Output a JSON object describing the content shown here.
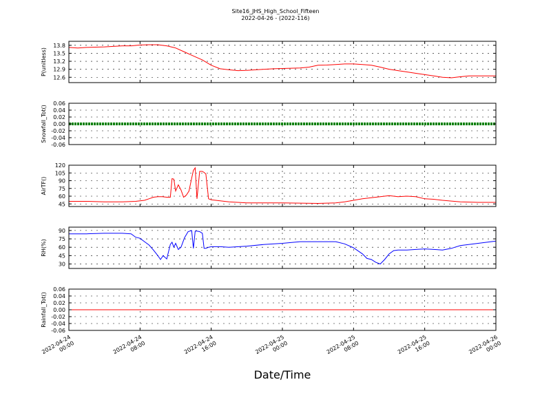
{
  "figure": {
    "title_line1": "Site16_JHS_High_School_Fifteen",
    "title_line2": "2022-04-26 - (2022-116)",
    "xlabel": "Date/Time",
    "x_ticks": [
      {
        "line1": "2022-04-24",
        "line2": "00:00"
      },
      {
        "line1": "2022-04-24",
        "line2": "08:00"
      },
      {
        "line1": "2022-04-24",
        "line2": "16:00"
      },
      {
        "line1": "2022-04-25",
        "line2": "00:00"
      },
      {
        "line1": "2022-04-25",
        "line2": "08:00"
      },
      {
        "line1": "2022-04-25",
        "line2": "16:00"
      },
      {
        "line1": "2022-04-26",
        "line2": "00:00"
      }
    ]
  },
  "chart_data": [
    {
      "type": "line",
      "ylabel": "P(unitless)",
      "ylim": [
        12.4,
        13.95
      ],
      "yticks": [
        12.6,
        12.9,
        13.2,
        13.5,
        13.8
      ],
      "ytick_labels": [
        "12.6",
        "12.9",
        "13.2",
        "13.5",
        "13.8"
      ],
      "color": "#ff0000",
      "grid": true,
      "x_hours": [
        0,
        1,
        2,
        3,
        4,
        5,
        6,
        7,
        8,
        9,
        10,
        11,
        12,
        13,
        14,
        15,
        16,
        17,
        18,
        19,
        20,
        21,
        22,
        23,
        24,
        25,
        26,
        27,
        28,
        29,
        30,
        31,
        32,
        33,
        34,
        35,
        36,
        37,
        38,
        39,
        40,
        41,
        42,
        43,
        44,
        45,
        46,
        47,
        48
      ],
      "y": [
        13.72,
        13.7,
        13.72,
        13.73,
        13.74,
        13.76,
        13.78,
        13.78,
        13.81,
        13.82,
        13.82,
        13.78,
        13.7,
        13.55,
        13.4,
        13.25,
        13.05,
        12.92,
        12.88,
        12.85,
        12.86,
        12.88,
        12.9,
        12.92,
        12.93,
        12.94,
        12.95,
        12.98,
        13.05,
        13.06,
        13.08,
        13.1,
        13.1,
        13.08,
        13.05,
        12.98,
        12.9,
        12.85,
        12.8,
        12.75,
        12.7,
        12.65,
        12.6,
        12.58,
        12.62,
        12.65,
        12.65,
        12.65,
        12.65
      ]
    },
    {
      "type": "line",
      "ylabel": "Snowfall_Tot()",
      "ylim": [
        -0.06,
        0.06
      ],
      "yticks": [
        -0.06,
        -0.04,
        -0.02,
        0.0,
        0.02,
        0.04,
        0.06
      ],
      "ytick_labels": [
        "-0.06",
        "-0.04",
        "-0.02",
        "0.00",
        "0.02",
        "0.04",
        "0.06"
      ],
      "color": "#007f00",
      "grid": true,
      "x_hours": [
        0,
        48
      ],
      "y": [
        0,
        0
      ]
    },
    {
      "type": "line",
      "ylabel": "AirTF()",
      "ylim": [
        40,
        120
      ],
      "yticks": [
        45,
        60,
        75,
        90,
        105,
        120
      ],
      "ytick_labels": [
        "45",
        "60",
        "75",
        "90",
        "105",
        "120"
      ],
      "color": "#ff0000",
      "grid": true,
      "x_hours": [
        0,
        2,
        4,
        6,
        7.5,
        8.5,
        9,
        9.5,
        10,
        10.5,
        11,
        11.4,
        11.6,
        11.8,
        12,
        12.3,
        12.6,
        12.9,
        13.2,
        13.5,
        13.8,
        14,
        14.2,
        14.4,
        14.7,
        15,
        15.2,
        15.4,
        15.7,
        16,
        17,
        18,
        20,
        24,
        28,
        30,
        31,
        32,
        33,
        34,
        35,
        36,
        37,
        38,
        39,
        40,
        41,
        42,
        44,
        46,
        48
      ],
      "y": [
        50,
        50,
        49,
        49,
        50,
        52,
        55,
        58,
        59,
        59,
        58,
        58,
        94,
        93,
        70,
        82,
        72,
        58,
        62,
        70,
        95,
        110,
        115,
        55,
        108,
        108,
        106,
        103,
        55,
        53,
        51,
        49,
        47,
        47,
        46,
        47,
        49,
        52,
        55,
        57,
        59,
        61,
        59,
        60,
        59,
        55,
        54,
        52,
        49,
        48,
        48
      ]
    },
    {
      "type": "line",
      "ylabel": "RH(%)",
      "ylim": [
        22,
        96
      ],
      "yticks": [
        30,
        45,
        60,
        75,
        90
      ],
      "ytick_labels": [
        "30",
        "45",
        "60",
        "75",
        "90"
      ],
      "color": "#0000ff",
      "grid": true,
      "x_hours": [
        0,
        2,
        4,
        6,
        7,
        7.5,
        8,
        8.5,
        9,
        9.5,
        10,
        10.3,
        10.6,
        11,
        11.4,
        11.6,
        11.8,
        12,
        12.3,
        12.6,
        13,
        13.4,
        13.8,
        14,
        14.2,
        14.4,
        14.7,
        15,
        15.2,
        15.4,
        15.7,
        16,
        17,
        18,
        20,
        22,
        24,
        26,
        28,
        30,
        31,
        32,
        33,
        33.5,
        34,
        34.5,
        35,
        35.5,
        36,
        36.5,
        37,
        38,
        39,
        40,
        41,
        42,
        43,
        44,
        46,
        48
      ],
      "y": [
        84,
        84,
        85,
        85,
        84,
        78,
        76,
        70,
        64,
        55,
        45,
        38,
        45,
        39,
        65,
        69,
        60,
        67,
        56,
        60,
        77,
        88,
        90,
        58,
        89,
        89,
        88,
        85,
        58,
        58,
        60,
        61,
        61,
        60,
        62,
        65,
        67,
        70,
        70,
        70,
        66,
        59,
        48,
        40,
        38,
        33,
        30,
        38,
        48,
        54,
        55,
        55,
        56,
        57,
        56,
        55,
        58,
        63,
        67,
        71
      ]
    },
    {
      "type": "line",
      "ylabel": "Rainfall_Tot()",
      "ylim": [
        -0.06,
        0.06
      ],
      "yticks": [
        -0.06,
        -0.04,
        -0.02,
        0.0,
        0.02,
        0.04,
        0.06
      ],
      "ytick_labels": [
        "-0.06",
        "-0.04",
        "-0.02",
        "0.00",
        "0.02",
        "0.04",
        "0.06"
      ],
      "color": "#ff0000",
      "grid": true,
      "x_hours": [
        0,
        48
      ],
      "y": [
        0,
        0
      ]
    }
  ]
}
